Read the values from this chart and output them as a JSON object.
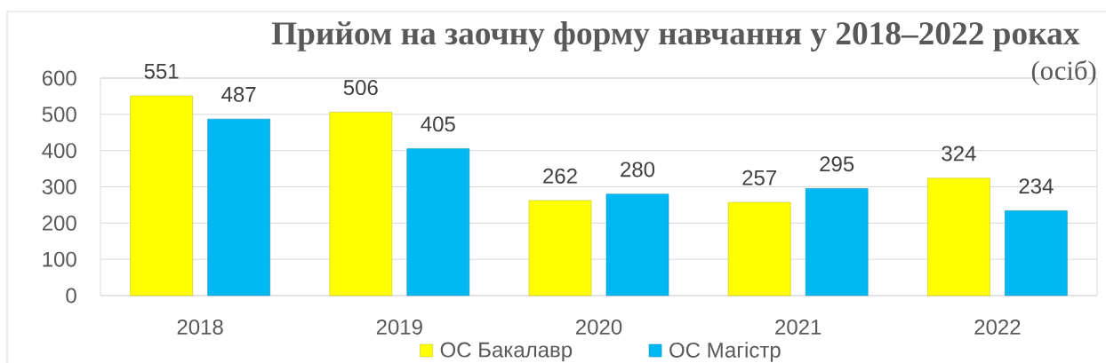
{
  "chart_data": {
    "type": "bar",
    "title": "Прийом на заочну форму навчання у 2018–2022 роках",
    "annotations": [
      "(осіб)"
    ],
    "categories": [
      "2018",
      "2019",
      "2020",
      "2021",
      "2022"
    ],
    "series": [
      {
        "name": "ОС Бакалавр",
        "color": "#ffff00",
        "values": [
          551,
          506,
          262,
          257,
          324
        ]
      },
      {
        "name": "ОС Магістр",
        "color": "#00b8f2",
        "values": [
          487,
          405,
          280,
          295,
          234
        ]
      }
    ],
    "ylim": [
      0,
      600
    ],
    "yticks": [
      0,
      100,
      200,
      300,
      400,
      500,
      600
    ],
    "grid": "y",
    "legend": "bottom",
    "data_labels": true
  }
}
